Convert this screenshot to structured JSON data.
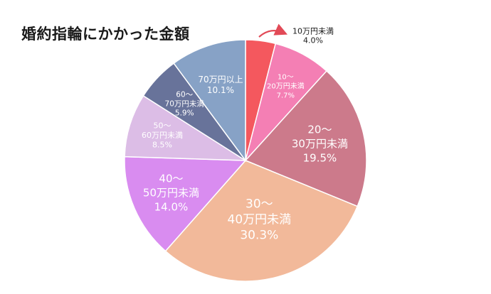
{
  "chart_data": {
    "type": "pie",
    "title": "婚約指輪にかかった金額",
    "slices": [
      {
        "label": [
          "10万円未満"
        ],
        "value": 4.0,
        "pct": "4.0%",
        "color": "#f4585e",
        "outside": true
      },
      {
        "label": [
          "10～",
          "20万円未満"
        ],
        "value": 7.7,
        "pct": "7.7%",
        "color": "#f47fb4"
      },
      {
        "label": [
          "20～",
          "30万円未満"
        ],
        "value": 19.5,
        "pct": "19.5%",
        "color": "#cc7a8b"
      },
      {
        "label": [
          "30～",
          "40万円未満"
        ],
        "value": 30.3,
        "pct": "30.3%",
        "color": "#f2b99a"
      },
      {
        "label": [
          "40～",
          "50万円未満"
        ],
        "value": 14.0,
        "pct": "14.0%",
        "color": "#d98cf0"
      },
      {
        "label": [
          "50～",
          "60万円未満"
        ],
        "value": 8.5,
        "pct": "8.5%",
        "color": "#dcbde6"
      },
      {
        "label": [
          "60～",
          "70万円未満"
        ],
        "value": 5.9,
        "pct": "5.9%",
        "color": "#68739a"
      },
      {
        "label": [
          "70万円以上"
        ],
        "value": 10.1,
        "pct": "10.1%",
        "color": "#87a2c6"
      }
    ]
  }
}
